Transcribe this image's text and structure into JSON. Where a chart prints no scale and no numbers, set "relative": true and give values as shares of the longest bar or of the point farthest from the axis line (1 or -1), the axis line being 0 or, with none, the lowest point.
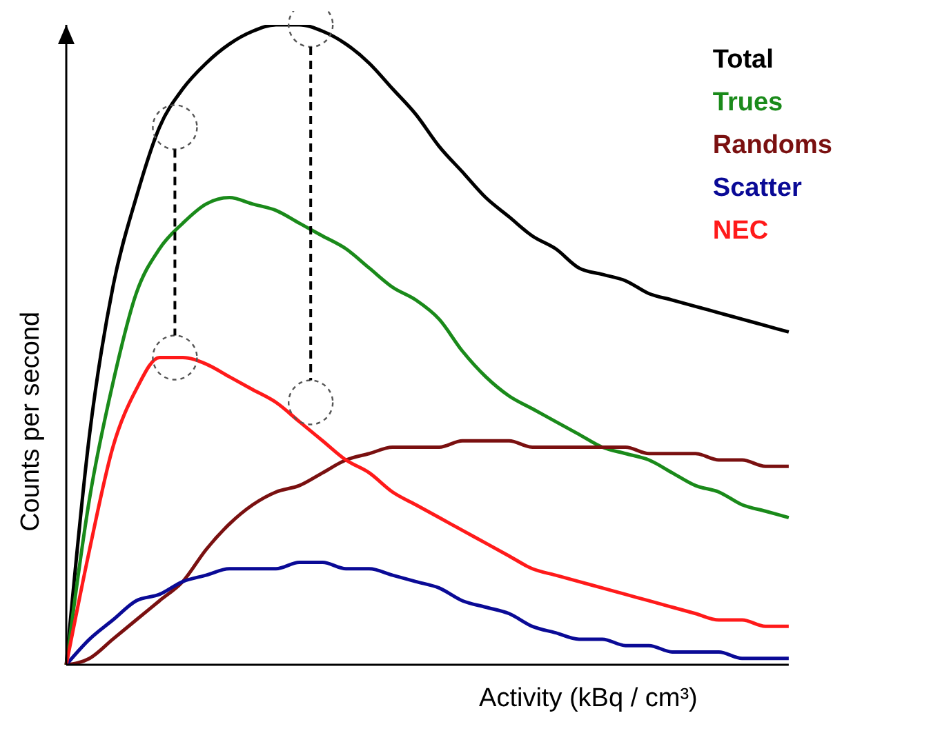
{
  "chart_data": {
    "type": "line",
    "relative": true,
    "xlabel": "Activity (kBq / cm³)",
    "ylabel": "Counts per second",
    "legend": "top right",
    "marker": "none",
    "line_style": "solid",
    "categories": [
      null,
      null,
      null,
      null,
      null,
      null,
      null,
      null,
      null,
      null,
      null,
      null,
      null,
      null,
      null,
      null,
      null,
      null,
      null,
      null,
      null,
      null,
      null,
      null,
      null,
      null,
      null,
      null,
      null,
      null,
      null,
      null
    ],
    "series": [
      {
        "name": "Total",
        "color": "#000000",
        "values": [
          0,
          0.36,
          0.59,
          0.73,
          0.84,
          0.9,
          0.94,
          0.97,
          0.99,
          1,
          1,
          0.99,
          0.97,
          0.94,
          0.9,
          0.86,
          0.81,
          0.77,
          0.73,
          0.7,
          0.67,
          0.65,
          0.62,
          0.61,
          0.6,
          0.58,
          0.57,
          0.56,
          0.55,
          0.54,
          0.53,
          0.52
        ]
      },
      {
        "name": "Trues",
        "color": "#1a8a1a",
        "values": [
          0,
          0.26,
          0.44,
          0.58,
          0.65,
          0.69,
          0.72,
          0.73,
          0.72,
          0.71,
          0.69,
          0.67,
          0.65,
          0.62,
          0.59,
          0.57,
          0.54,
          0.49,
          0.45,
          0.42,
          0.4,
          0.38,
          0.36,
          0.34,
          0.33,
          0.32,
          0.3,
          0.28,
          0.27,
          0.25,
          0.24,
          0.23
        ]
      },
      {
        "name": "Randoms",
        "color": "#7a1010",
        "values": [
          0,
          0.01,
          0.04,
          0.07,
          0.1,
          0.13,
          0.18,
          0.22,
          0.25,
          0.27,
          0.28,
          0.3,
          0.32,
          0.33,
          0.34,
          0.34,
          0.34,
          0.35,
          0.35,
          0.35,
          0.34,
          0.34,
          0.34,
          0.34,
          0.34,
          0.33,
          0.33,
          0.33,
          0.32,
          0.32,
          0.31,
          0.31
        ]
      },
      {
        "name": "Scatter",
        "color": "#0a0a96",
        "values": [
          0,
          0.04,
          0.07,
          0.1,
          0.11,
          0.13,
          0.14,
          0.15,
          0.15,
          0.15,
          0.16,
          0.16,
          0.15,
          0.15,
          0.14,
          0.13,
          0.12,
          0.1,
          0.09,
          0.08,
          0.06,
          0.05,
          0.04,
          0.04,
          0.03,
          0.03,
          0.02,
          0.02,
          0.02,
          0.01,
          0.01,
          0.01
        ]
      },
      {
        "name": "NEC",
        "color": "#ff1a1a",
        "values": [
          0,
          0.18,
          0.34,
          0.43,
          0.48,
          0.48,
          0.47,
          0.45,
          0.43,
          0.41,
          0.38,
          0.35,
          0.32,
          0.3,
          0.27,
          0.25,
          0.23,
          0.21,
          0.19,
          0.17,
          0.15,
          0.14,
          0.13,
          0.12,
          0.11,
          0.1,
          0.09,
          0.08,
          0.07,
          0.07,
          0.06,
          0.06
        ]
      }
    ]
  }
}
